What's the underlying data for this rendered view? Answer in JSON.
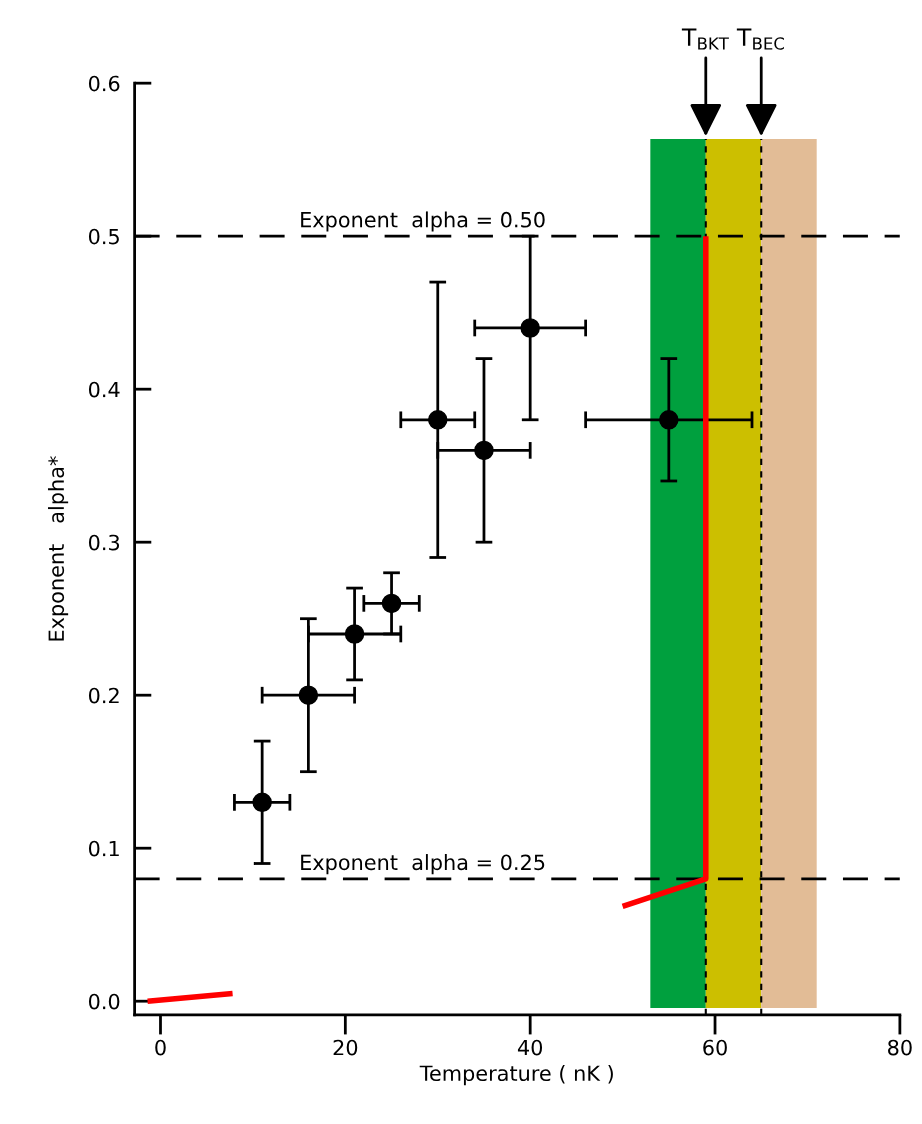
{
  "chart_data": {
    "type": "scatter",
    "xlabel": "Temperature ( nK )",
    "ylabel": "Exponent   alpha*",
    "xlim": [
      -2.8,
      80
    ],
    "xticks": [
      0,
      20,
      40,
      60,
      80
    ],
    "ylim": [
      -0.009,
      0.6
    ],
    "yticks": [
      {
        "value": 0,
        "label": "0.0"
      },
      0.1,
      0.2,
      0.3,
      0.4,
      0.5,
      0.6
    ],
    "grid": false,
    "legend": false,
    "annotations": [
      "Exponent  alpha = 0.50",
      "Exponent  alpha = 0.25"
    ],
    "series": [
      {
        "marker": "circle",
        "color": "#000000",
        "x": [
          11,
          16,
          21,
          25,
          30,
          35,
          40,
          55
        ],
        "values": [
          0.13,
          0.2,
          0.24,
          0.26,
          0.38,
          0.36,
          0.44,
          0.38
        ],
        "errors": [
          [
            0.09,
            0.17
          ],
          [
            0.15,
            0.25
          ],
          [
            0.21,
            0.27
          ],
          [
            0.24,
            0.28
          ],
          [
            0.29,
            0.47
          ],
          [
            0.3,
            0.42
          ],
          [
            0.38,
            0.5
          ],
          [
            0.34,
            0.42
          ]
        ],
        "xerrors": [
          [
            8,
            14
          ],
          [
            11,
            21
          ],
          [
            16,
            26
          ],
          [
            22,
            28
          ],
          [
            26,
            34
          ],
          [
            30,
            40
          ],
          [
            34,
            46
          ],
          [
            46,
            64
          ]
        ]
      },
      {
        "type": "line",
        "marker": "none",
        "color": "#ff0000",
        "x": [
          -1.4,
          7.8
        ],
        "values": [
          0,
          0.005
        ]
      },
      {
        "type": "line",
        "marker": "none",
        "color": "#ff0000",
        "x": [
          50,
          59,
          59
        ],
        "values": [
          0.062,
          0.08,
          0.5
        ]
      }
    ],
    "bands": [
      {
        "axis": "x",
        "from": 53,
        "to": 59,
        "color": "#00a03e"
      },
      {
        "axis": "x",
        "from": 59,
        "to": 65,
        "color": "#ccbf00"
      },
      {
        "axis": "x",
        "from": 65,
        "to": 71,
        "color": "#e2bc96"
      }
    ],
    "ref_lines": [
      {
        "axis": "y",
        "value": 0.5,
        "line_style": "dashed"
      },
      {
        "axis": "y",
        "value": 0.08,
        "line_style": "dashed"
      },
      {
        "axis": "x",
        "value": 59,
        "label": "T$_{BKT}$",
        "line_style": "dashed"
      },
      {
        "axis": "x",
        "value": 65,
        "label": "T$_{BEC}$",
        "line_style": "dashed"
      }
    ]
  }
}
